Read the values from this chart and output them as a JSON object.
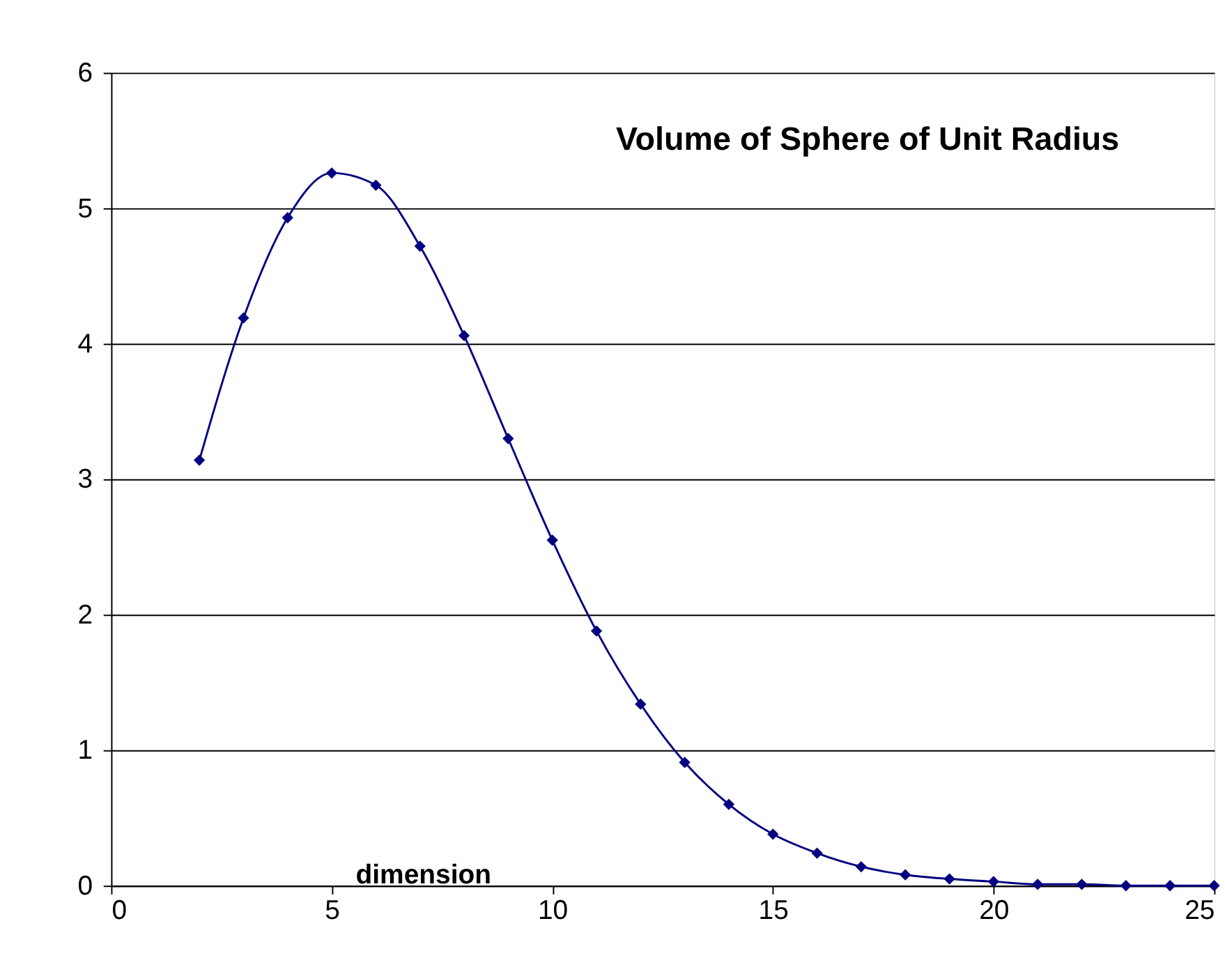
{
  "chart_data": {
    "type": "line",
    "title": "Volume of Sphere of Unit Radius",
    "xlabel": "dimension",
    "x": [
      2,
      3,
      4,
      5,
      6,
      7,
      8,
      9,
      10,
      11,
      12,
      13,
      14,
      15,
      16,
      17,
      18,
      19,
      20,
      21,
      22,
      23,
      24,
      25
    ],
    "series": [
      {
        "color": "#000080",
        "values": [
          3.14,
          4.19,
          4.93,
          5.26,
          5.17,
          4.72,
          4.06,
          3.3,
          2.55,
          1.88,
          1.34,
          0.91,
          0.6,
          0.38,
          0.24,
          0.14,
          0.08,
          0.05,
          0.03,
          0.01,
          0.01,
          0.0,
          0.0,
          0.0
        ]
      }
    ],
    "xlim": [
      0,
      25
    ],
    "xticks": [
      0,
      5,
      10,
      15,
      20,
      25
    ],
    "ylim": [
      0,
      6
    ],
    "yticks": [
      0,
      1,
      2,
      3,
      4,
      5,
      6
    ],
    "grid": "y",
    "marker": "diamond",
    "line_style": "solid",
    "legend": false
  }
}
